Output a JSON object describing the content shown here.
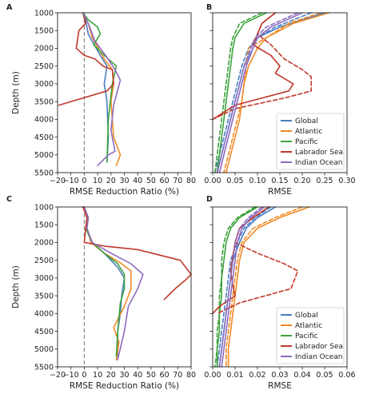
{
  "colors": {
    "Global": "#4a7fc1",
    "Atlantic": "#f08a24",
    "Pacific": "#3aa23a",
    "Labrador Sea": "#c0392b",
    "Indian Ocean": "#8e6bbf",
    "zero_line": "#888888"
  },
  "chart_data": [
    {
      "panel": "A",
      "type": "line",
      "xlabel": "RMSE Reduction Ratio (%)",
      "ylabel": "Depth (m)",
      "xlim": [
        -20,
        80
      ],
      "ylim": [
        1000,
        5500
      ],
      "y_inverted": true,
      "xticks": [
        -20,
        -10,
        0,
        10,
        20,
        30,
        40,
        50,
        60,
        70,
        80
      ],
      "xtick_labels": [
        "−20",
        "−10",
        "0",
        "10",
        "20",
        "30",
        "40",
        "50",
        "60",
        "70",
        "80"
      ],
      "yticks": [
        1000,
        1500,
        2000,
        2500,
        3000,
        3500,
        4000,
        4500,
        5000,
        5500
      ],
      "ytick_labels": [
        "1000",
        "1500",
        "2000",
        "2500",
        "3000",
        "3500",
        "4000",
        "4500",
        "5000",
        "5500"
      ],
      "zero_line": true,
      "series": [
        {
          "name": "Global",
          "x": [
            -1,
            1,
            3,
            12,
            17,
            15,
            17,
            18,
            17
          ],
          "y": [
            1000,
            1200,
            1600,
            2200,
            2500,
            3000,
            3500,
            4500,
            5200
          ]
        },
        {
          "name": "Atlantic",
          "x": [
            -1,
            3,
            6,
            15,
            21,
            22,
            20,
            22,
            27,
            24
          ],
          "y": [
            1000,
            1300,
            1700,
            2300,
            2600,
            3000,
            3500,
            4500,
            5000,
            5300
          ]
        },
        {
          "name": "Pacific",
          "x": [
            -1,
            3,
            10,
            12,
            7,
            15,
            24,
            21,
            18,
            17
          ],
          "y": [
            1000,
            1200,
            1400,
            1600,
            1900,
            2200,
            2500,
            3000,
            4000,
            5200
          ]
        },
        {
          "name": "Labrador Sea",
          "x": [
            -1,
            1,
            -4,
            -6,
            0,
            8,
            14,
            21,
            22,
            17,
            -19
          ],
          "y": [
            1000,
            1300,
            1500,
            2000,
            2200,
            2300,
            2500,
            2600,
            3000,
            3200,
            3600
          ]
        },
        {
          "name": "Indian Ocean",
          "x": [
            -1,
            3,
            8,
            16,
            23,
            27,
            22,
            20,
            23,
            18,
            10
          ],
          "y": [
            1000,
            1300,
            1800,
            2200,
            2600,
            2900,
            3600,
            4300,
            4900,
            5000,
            5300
          ]
        }
      ]
    },
    {
      "panel": "B",
      "type": "line",
      "xlabel": "RMSE",
      "ylabel": "",
      "xlim": [
        0,
        0.3
      ],
      "ylim": [
        1000,
        5500
      ],
      "y_inverted": true,
      "xticks": [
        0.0,
        0.05,
        0.1,
        0.15,
        0.2,
        0.25,
        0.3
      ],
      "xtick_labels": [
        "0.00",
        "0.05",
        "0.10",
        "0.15",
        "0.20",
        "0.25",
        "0.30"
      ],
      "yticks": [
        1000,
        1500,
        2000,
        2500,
        3000,
        3500,
        4000,
        4500,
        5000,
        5500
      ],
      "legend": {
        "location": "lower-right",
        "entries": [
          "Global",
          "Atlantic",
          "Pacific",
          "Labrador Sea",
          "Indian Ocean"
        ]
      },
      "series": [
        {
          "name": "Global",
          "style": "solid",
          "x": [
            0.25,
            0.15,
            0.1,
            0.09,
            0.07,
            0.06,
            0.05,
            0.04,
            0.03,
            0.02,
            0.01
          ],
          "y": [
            1000,
            1400,
            1700,
            2000,
            2500,
            3000,
            3500,
            4000,
            4500,
            5000,
            5500
          ]
        },
        {
          "name": "Global",
          "style": "dashed",
          "x": [
            0.22,
            0.14,
            0.1,
            0.08,
            0.065,
            0.055,
            0.045,
            0.035,
            0.025,
            0.015,
            0.005
          ],
          "y": [
            1000,
            1400,
            1700,
            2000,
            2500,
            3000,
            3500,
            4000,
            4500,
            5000,
            5500
          ]
        },
        {
          "name": "Atlantic",
          "style": "solid",
          "x": [
            0.26,
            0.18,
            0.12,
            0.1,
            0.08,
            0.07,
            0.065,
            0.06,
            0.05,
            0.04,
            0.03
          ],
          "y": [
            1000,
            1300,
            1700,
            2000,
            2500,
            3000,
            3500,
            4000,
            4500,
            5000,
            5500
          ]
        },
        {
          "name": "Atlantic",
          "style": "dashed",
          "x": [
            0.24,
            0.17,
            0.12,
            0.08,
            0.075,
            0.07,
            0.065,
            0.055,
            0.045,
            0.035,
            0.025
          ],
          "y": [
            1000,
            1300,
            1700,
            2000,
            2500,
            3000,
            3500,
            4000,
            4500,
            5000,
            5500
          ]
        },
        {
          "name": "Pacific",
          "style": "solid",
          "x": [
            0.12,
            0.07,
            0.05,
            0.045,
            0.04,
            0.035,
            0.03,
            0.025,
            0.02,
            0.015,
            0.01
          ],
          "y": [
            1000,
            1300,
            1700,
            2000,
            2500,
            3000,
            3500,
            4000,
            4500,
            5000,
            5500
          ]
        },
        {
          "name": "Pacific",
          "style": "dashed",
          "x": [
            0.11,
            0.06,
            0.045,
            0.04,
            0.035,
            0.03,
            0.025,
            0.02,
            0.015,
            0.01,
            0.005
          ],
          "y": [
            1000,
            1300,
            1700,
            2000,
            2500,
            3000,
            3500,
            4000,
            4500,
            5000,
            5500
          ]
        },
        {
          "name": "Labrador Sea",
          "style": "solid",
          "x": [
            0.14,
            0.11,
            0.1,
            0.09,
            0.13,
            0.15,
            0.14,
            0.18,
            0.17,
            0.05,
            0.0
          ],
          "y": [
            1000,
            1300,
            1600,
            1900,
            2200,
            2500,
            2700,
            3000,
            3200,
            3600,
            4000
          ]
        },
        {
          "name": "Labrador Sea",
          "style": "dashed",
          "x": [
            0.14,
            0.11,
            0.1,
            0.13,
            0.16,
            0.2,
            0.22,
            0.22,
            0.16,
            0.05,
            0.0
          ],
          "y": [
            1000,
            1300,
            1600,
            1900,
            2300,
            2600,
            2800,
            3200,
            3400,
            3700,
            4000
          ]
        },
        {
          "name": "Indian Ocean",
          "style": "solid",
          "x": [
            0.2,
            0.13,
            0.1,
            0.09,
            0.075,
            0.065,
            0.055,
            0.045,
            0.035,
            0.025,
            0.015
          ],
          "y": [
            1000,
            1400,
            1700,
            2000,
            2500,
            3000,
            3500,
            4000,
            4500,
            5000,
            5500
          ]
        },
        {
          "name": "Indian Ocean",
          "style": "dashed",
          "x": [
            0.19,
            0.12,
            0.095,
            0.085,
            0.07,
            0.06,
            0.05,
            0.04,
            0.03,
            0.02,
            0.01
          ],
          "y": [
            1000,
            1400,
            1700,
            2000,
            2500,
            3000,
            3500,
            4000,
            4500,
            5000,
            5500
          ]
        }
      ]
    },
    {
      "panel": "C",
      "type": "line",
      "xlabel": "RMSE Reduction Ratio (%)",
      "ylabel": "Depth (m)",
      "xlim": [
        -20,
        80
      ],
      "ylim": [
        1000,
        5500
      ],
      "y_inverted": true,
      "xticks": [
        -20,
        -10,
        0,
        10,
        20,
        30,
        40,
        50,
        60,
        70,
        80
      ],
      "xtick_labels": [
        "−20",
        "−10",
        "0",
        "10",
        "20",
        "30",
        "40",
        "50",
        "60",
        "70",
        "80"
      ],
      "yticks": [
        1000,
        1500,
        2000,
        2500,
        3000,
        3500,
        4000,
        4500,
        5000,
        5500
      ],
      "ytick_labels": [
        "1000",
        "1500",
        "2000",
        "2500",
        "3000",
        "3500",
        "4000",
        "4500",
        "5000",
        "5500"
      ],
      "zero_line": true,
      "series": [
        {
          "name": "Global",
          "x": [
            -1,
            3,
            2,
            5,
            15,
            25,
            30,
            28,
            27,
            25,
            25
          ],
          "y": [
            1000,
            1300,
            1600,
            2000,
            2300,
            2700,
            3000,
            3500,
            4000,
            4500,
            5200
          ]
        },
        {
          "name": "Atlantic",
          "x": [
            0,
            3,
            2,
            5,
            15,
            28,
            35,
            35,
            30,
            22,
            26,
            24
          ],
          "y": [
            1000,
            1300,
            1600,
            2000,
            2300,
            2600,
            2800,
            3300,
            3800,
            4400,
            4800,
            5300
          ]
        },
        {
          "name": "Pacific",
          "x": [
            -1,
            3,
            1,
            6,
            15,
            25,
            30,
            30,
            27,
            25,
            24
          ],
          "y": [
            1000,
            1300,
            1600,
            2000,
            2300,
            2600,
            2900,
            3300,
            3700,
            4500,
            5200
          ]
        },
        {
          "name": "Labrador Sea",
          "x": [
            -1,
            2,
            1,
            0,
            15,
            40,
            72,
            80,
            76,
            68,
            60
          ],
          "y": [
            1000,
            1300,
            1600,
            2000,
            2100,
            2200,
            2500,
            2900,
            3050,
            3300,
            3600
          ]
        },
        {
          "name": "Indian Ocean",
          "x": [
            0,
            3,
            2,
            6,
            20,
            35,
            44,
            40,
            33,
            30,
            25
          ],
          "y": [
            1000,
            1300,
            1600,
            2000,
            2300,
            2600,
            2900,
            3300,
            3800,
            4500,
            5300
          ]
        }
      ]
    },
    {
      "panel": "D",
      "type": "line",
      "xlabel": "RMSE",
      "ylabel": "",
      "xlim": [
        0,
        0.06
      ],
      "ylim": [
        1000,
        5500
      ],
      "y_inverted": true,
      "xticks": [
        0.0,
        0.01,
        0.02,
        0.03,
        0.04,
        0.05,
        0.06
      ],
      "xtick_labels": [
        "0.00",
        "0.01",
        "0.02",
        "0.03",
        "0.04",
        "0.05",
        "0.06"
      ],
      "yticks": [
        1000,
        1500,
        2000,
        2500,
        3000,
        3500,
        4000,
        4500,
        5000,
        5500
      ],
      "legend": {
        "location": "lower-right",
        "entries": [
          "Global",
          "Atlantic",
          "Pacific",
          "Labrador Sea",
          "Indian Ocean"
        ]
      },
      "series": [
        {
          "name": "Global",
          "style": "solid",
          "x": [
            0.028,
            0.02,
            0.015,
            0.012,
            0.009,
            0.008,
            0.007,
            0.006,
            0.005,
            0.004,
            0.003
          ],
          "y": [
            1000,
            1300,
            1600,
            2000,
            2500,
            3000,
            3500,
            4000,
            4500,
            5000,
            5500
          ]
        },
        {
          "name": "Global",
          "style": "dashed",
          "x": [
            0.026,
            0.019,
            0.014,
            0.011,
            0.008,
            0.007,
            0.006,
            0.005,
            0.004,
            0.003,
            0.002
          ],
          "y": [
            1000,
            1300,
            1600,
            2000,
            2500,
            3000,
            3500,
            4000,
            4500,
            5000,
            5500
          ]
        },
        {
          "name": "Atlantic",
          "style": "solid",
          "x": [
            0.043,
            0.03,
            0.02,
            0.014,
            0.012,
            0.011,
            0.01,
            0.009,
            0.008,
            0.007,
            0.007
          ],
          "y": [
            1000,
            1300,
            1600,
            2000,
            2500,
            3000,
            3500,
            4000,
            4500,
            5000,
            5500
          ]
        },
        {
          "name": "Atlantic",
          "style": "dashed",
          "x": [
            0.04,
            0.028,
            0.018,
            0.013,
            0.011,
            0.01,
            0.009,
            0.008,
            0.007,
            0.006,
            0.006
          ],
          "y": [
            1000,
            1300,
            1600,
            2000,
            2500,
            3000,
            3500,
            4000,
            4500,
            5000,
            5500
          ]
        },
        {
          "name": "Pacific",
          "style": "solid",
          "x": [
            0.02,
            0.012,
            0.008,
            0.006,
            0.005,
            0.004,
            0.004,
            0.003,
            0.003,
            0.002,
            0.002
          ],
          "y": [
            1000,
            1300,
            1600,
            2000,
            2500,
            3000,
            3500,
            4000,
            4500,
            5000,
            5500
          ]
        },
        {
          "name": "Pacific",
          "style": "dashed",
          "x": [
            0.019,
            0.011,
            0.007,
            0.005,
            0.004,
            0.004,
            0.003,
            0.003,
            0.002,
            0.002,
            0.001
          ],
          "y": [
            1000,
            1300,
            1600,
            2000,
            2500,
            3000,
            3500,
            4000,
            4500,
            5000,
            5500
          ]
        },
        {
          "name": "Labrador Sea",
          "style": "solid",
          "x": [
            0.025,
            0.018,
            0.012,
            0.01,
            0.009,
            0.008,
            0.009,
            0.01,
            0.003,
            0.0
          ],
          "y": [
            1000,
            1300,
            1600,
            2000,
            2400,
            2800,
            3200,
            3500,
            3800,
            4000
          ]
        },
        {
          "name": "Labrador Sea",
          "style": "dashed",
          "x": [
            0.025,
            0.018,
            0.012,
            0.01,
            0.02,
            0.032,
            0.038,
            0.035,
            0.012,
            0.002
          ],
          "y": [
            1000,
            1300,
            1600,
            2000,
            2300,
            2600,
            2800,
            3300,
            3700,
            4000
          ]
        },
        {
          "name": "Indian Ocean",
          "style": "solid",
          "x": [
            0.023,
            0.017,
            0.013,
            0.011,
            0.01,
            0.009,
            0.008,
            0.007,
            0.006,
            0.005,
            0.004
          ],
          "y": [
            1000,
            1300,
            1600,
            2000,
            2500,
            3000,
            3500,
            4000,
            4500,
            5000,
            5500
          ]
        },
        {
          "name": "Indian Ocean",
          "style": "dashed",
          "x": [
            0.022,
            0.016,
            0.012,
            0.01,
            0.009,
            0.008,
            0.007,
            0.006,
            0.005,
            0.004,
            0.003
          ],
          "y": [
            1000,
            1300,
            1600,
            2000,
            2500,
            3000,
            3500,
            4000,
            4500,
            5000,
            5500
          ]
        }
      ]
    }
  ]
}
